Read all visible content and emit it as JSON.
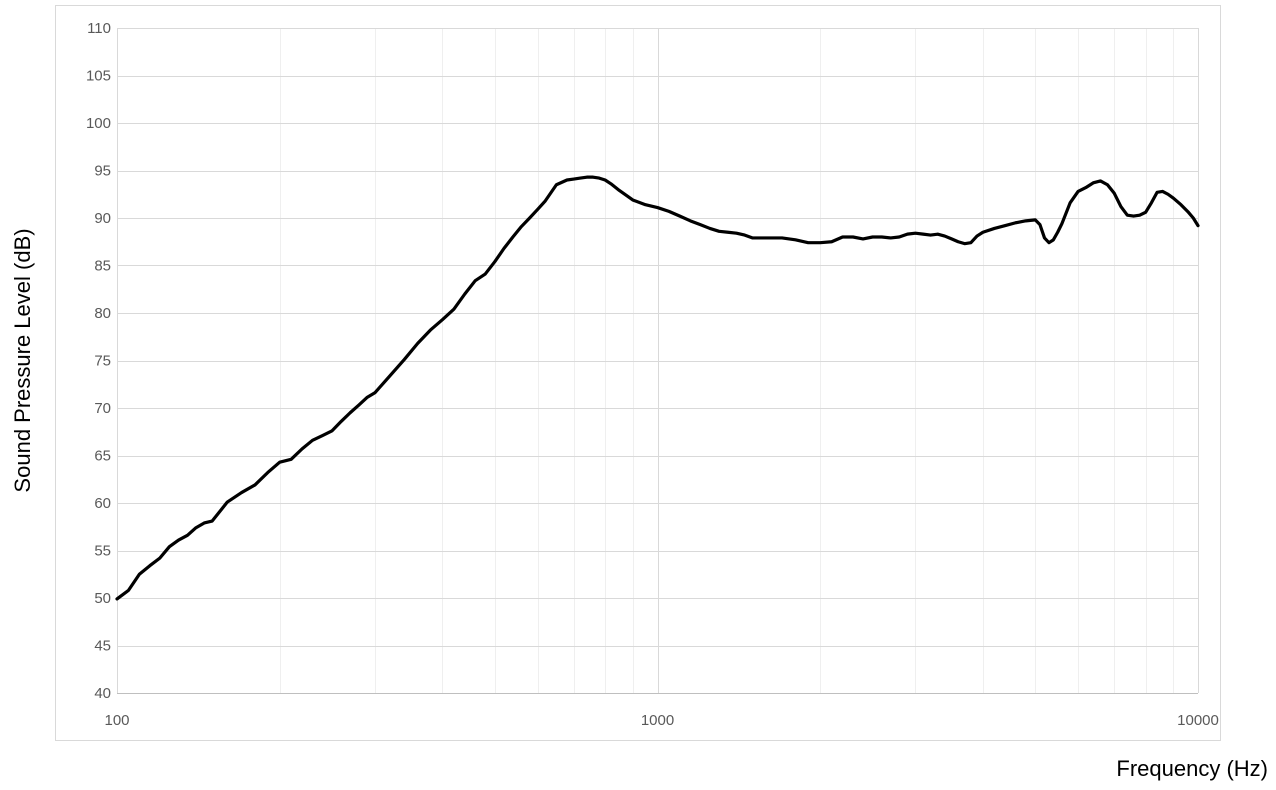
{
  "chart_data": {
    "type": "line",
    "title": "",
    "xlabel": "Frequency (Hz)",
    "ylabel": "Sound Pressure Level (dB)",
    "x_scale": "log",
    "xlim": [
      100,
      10000
    ],
    "ylim": [
      40,
      110
    ],
    "x_ticks": [
      "100",
      "1000",
      "10000"
    ],
    "y_ticks": [
      "40",
      "45",
      "50",
      "55",
      "60",
      "65",
      "70",
      "75",
      "80",
      "85",
      "90",
      "95",
      "100",
      "105",
      "110"
    ],
    "grid": true,
    "legend": "none",
    "colors": {
      "line": "#000000",
      "major_grid": "#d9d9d9",
      "minor_grid": "#efefef",
      "frame": "#d9d9d9",
      "tick_text": "#595959"
    },
    "series": [
      {
        "x": [
          100,
          105,
          110,
          115,
          120,
          125,
          130,
          135,
          140,
          145,
          150,
          160,
          170,
          180,
          190,
          200,
          210,
          220,
          230,
          240,
          250,
          260,
          270,
          280,
          290,
          300,
          320,
          340,
          360,
          380,
          400,
          420,
          440,
          460,
          480,
          500,
          520,
          540,
          560,
          580,
          600,
          620,
          650,
          680,
          700,
          720,
          740,
          760,
          780,
          800,
          820,
          850,
          880,
          900,
          950,
          1000,
          1050,
          1100,
          1150,
          1200,
          1250,
          1300,
          1350,
          1400,
          1450,
          1500,
          1600,
          1700,
          1800,
          1900,
          2000,
          2100,
          2200,
          2300,
          2400,
          2500,
          2600,
          2700,
          2800,
          2900,
          3000,
          3100,
          3200,
          3300,
          3400,
          3500,
          3600,
          3700,
          3800,
          3900,
          4000,
          4200,
          4400,
          4600,
          4800,
          5000,
          5100,
          5200,
          5300,
          5400,
          5500,
          5600,
          5800,
          6000,
          6200,
          6400,
          6600,
          6800,
          7000,
          7200,
          7400,
          7600,
          7800,
          8000,
          8200,
          8400,
          8600,
          8800,
          9000,
          9300,
          9600,
          9800,
          10000
        ],
        "y": [
          49.9,
          50.8,
          52.5,
          53.4,
          54.2,
          55.4,
          56.1,
          56.6,
          57.4,
          57.9,
          58.1,
          60.1,
          61.1,
          61.9,
          63.2,
          64.3,
          64.6,
          65.7,
          66.6,
          67.1,
          67.6,
          68.6,
          69.5,
          70.3,
          71.1,
          71.6,
          73.4,
          75.1,
          76.8,
          78.2,
          79.3,
          80.4,
          82.0,
          83.4,
          84.1,
          85.4,
          86.8,
          88.0,
          89.1,
          90.0,
          90.9,
          91.8,
          93.5,
          94.0,
          94.1,
          94.2,
          94.3,
          94.3,
          94.2,
          94.0,
          93.6,
          92.9,
          92.3,
          91.9,
          91.4,
          91.1,
          90.7,
          90.2,
          89.7,
          89.3,
          88.9,
          88.6,
          88.5,
          88.4,
          88.2,
          87.9,
          87.9,
          87.9,
          87.7,
          87.4,
          87.4,
          87.5,
          88.0,
          88.0,
          87.8,
          88.0,
          88.0,
          87.9,
          88.0,
          88.3,
          88.4,
          88.3,
          88.2,
          88.3,
          88.1,
          87.8,
          87.5,
          87.3,
          87.4,
          88.1,
          88.5,
          88.9,
          89.2,
          89.5,
          89.7,
          89.8,
          89.3,
          87.9,
          87.4,
          87.7,
          88.5,
          89.4,
          91.6,
          92.8,
          93.2,
          93.7,
          93.9,
          93.5,
          92.6,
          91.2,
          90.3,
          90.2,
          90.3,
          90.6,
          91.6,
          92.7,
          92.8,
          92.5,
          92.1,
          91.4,
          90.6,
          90.0,
          89.2
        ]
      }
    ]
  }
}
